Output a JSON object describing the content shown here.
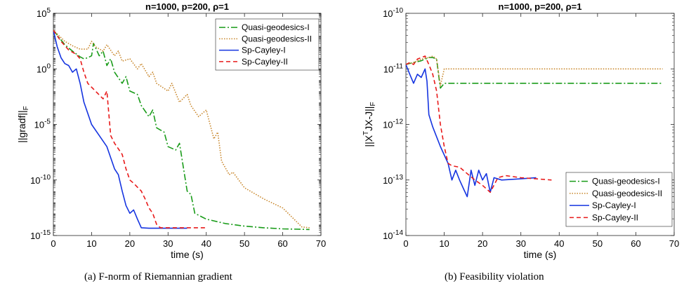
{
  "captions": {
    "a": "(a)  F-norm of Riemannian gradient",
    "b": "(b)  Feasibility violation"
  },
  "chart_data": [
    {
      "type": "line",
      "title": "n=1000, p=200,  ρ=1",
      "xlabel": "time (s)",
      "ylabel": "||gradf||",
      "ylabel_sub": "F",
      "yscale": "log",
      "xlim": [
        0,
        70
      ],
      "ylim": [
        1e-15,
        100000.0
      ],
      "xticks": [
        0,
        10,
        20,
        30,
        40,
        50,
        60,
        70
      ],
      "yticks": [
        {
          "value": 100000.0,
          "base": "10",
          "exp": "5"
        },
        {
          "value": 1,
          "base": "10",
          "exp": "0"
        },
        {
          "value": 1e-05,
          "base": "10",
          "exp": "-5"
        },
        {
          "value": 1e-10,
          "base": "10",
          "exp": "-10"
        },
        {
          "value": 1e-15,
          "base": "10",
          "exp": "-15"
        }
      ],
      "legend_position": "top-right",
      "series": [
        {
          "name": "Quasi-geodesics-I",
          "color": "#1a9c1a",
          "dash": "9,3,2,3",
          "x": [
            0,
            3,
            5,
            7,
            8,
            9,
            10,
            10.5,
            12,
            13,
            14,
            15,
            16,
            18,
            19,
            20,
            22,
            23,
            25,
            26,
            27,
            29,
            30,
            32,
            33,
            35,
            36,
            37,
            40,
            45,
            50,
            55,
            60,
            67
          ],
          "y": [
            3000.0,
            150,
            40,
            12,
            8,
            10,
            15,
            200,
            15,
            40,
            2,
            8,
            0.5,
            0.05,
            0.2,
            0.01,
            0.005,
            0.0005,
            5e-05,
            0.0002,
            5e-06,
            2e-06,
            1e-07,
            5e-08,
            2e-07,
            1e-11,
            5e-12,
            1e-13,
            3e-14,
            1.2e-14,
            7e-15,
            5e-15,
            4e-15,
            3.5e-15
          ]
        },
        {
          "name": "Quasi-geodesics-II",
          "color": "#c8862a",
          "dash": "1.5,2",
          "x": [
            0,
            3,
            5,
            7,
            9,
            10,
            11,
            13,
            14,
            16,
            17,
            18,
            20,
            22,
            23,
            25,
            26,
            27,
            30,
            31,
            33,
            35,
            36,
            38,
            40,
            42,
            43,
            44,
            46,
            47,
            50,
            55,
            60,
            65,
            67
          ],
          "y": [
            3000.0,
            300,
            120,
            60,
            60,
            300,
            100,
            40,
            150,
            15,
            40,
            5,
            8,
            1,
            3,
            0.2,
            0.5,
            0.05,
            0.01,
            0.05,
            0.001,
            0.005,
            0.0005,
            5e-05,
            0.0002,
            5e-07,
            2e-06,
            5e-09,
            3e-10,
            5e-10,
            2e-11,
            2e-12,
            3e-13,
            6e-15,
            5e-15
          ]
        },
        {
          "name": "Sp-Cayley-I",
          "color": "#1534e0",
          "dash": "",
          "x": [
            0,
            1,
            2,
            3,
            4,
            5,
            6,
            7,
            8,
            10,
            12,
            14,
            16,
            17,
            18,
            19,
            20,
            21,
            22,
            23,
            25,
            30,
            35
          ],
          "y": [
            3000.0,
            100,
            10,
            3,
            2,
            0.5,
            1,
            0.05,
            0.001,
            1e-05,
            1e-06,
            1e-07,
            1e-09,
            3e-10,
            1e-11,
            5e-13,
            1e-13,
            2e-13,
            3e-14,
            5e-15,
            4.5e-15,
            4.5e-15,
            4.5e-15
          ]
        },
        {
          "name": "Sp-Cayley-II",
          "color": "#e81a1a",
          "dash": "6,4",
          "x": [
            0,
            2,
            4,
            6,
            7,
            8,
            9,
            11,
            13,
            14,
            15,
            16,
            18,
            19,
            20,
            21,
            23,
            24,
            25,
            26,
            27,
            28,
            30,
            35,
            40
          ],
          "y": [
            3000.0,
            300,
            50,
            20,
            8,
            0.5,
            0.05,
            0.01,
            0.002,
            0.01,
            1e-06,
            2e-07,
            2e-08,
            1e-09,
            1e-10,
            5e-11,
            1e-11,
            2e-12,
            3e-13,
            1e-13,
            1e-14,
            5e-15,
            5e-15,
            5e-15,
            5e-15
          ]
        }
      ]
    },
    {
      "type": "line",
      "title": "n=1000, p=200,  ρ=1",
      "xlabel": "time (s)",
      "ylabel": "||X",
      "ylabel_sup": "T",
      "ylabel_rest": "JX-J||",
      "ylabel_sub": "F",
      "yscale": "log",
      "xlim": [
        0,
        70
      ],
      "ylim": [
        1e-14,
        1e-10
      ],
      "xticks": [
        0,
        10,
        20,
        30,
        40,
        50,
        60,
        70
      ],
      "yticks": [
        {
          "value": 1e-10,
          "base": "10",
          "exp": "-10"
        },
        {
          "value": 1e-11,
          "base": "10",
          "exp": "-11"
        },
        {
          "value": 1e-12,
          "base": "10",
          "exp": "-12"
        },
        {
          "value": 1e-13,
          "base": "10",
          "exp": "-13"
        },
        {
          "value": 1e-14,
          "base": "10",
          "exp": "-14"
        }
      ],
      "legend_position": "bottom-right",
      "series": [
        {
          "name": "Quasi-geodesics-I",
          "color": "#1a9c1a",
          "dash": "9,3,2,3",
          "x": [
            0,
            2,
            4,
            6,
            7,
            8,
            8.5,
            9,
            10,
            20,
            30,
            40,
            50,
            60,
            67
          ],
          "y": [
            1.2e-11,
            1.3e-11,
            1.4e-11,
            1.6e-11,
            1.6e-11,
            1.5e-11,
            8e-12,
            4.5e-12,
            5.5e-12,
            5.5e-12,
            5.5e-12,
            5.5e-12,
            5.5e-12,
            5.5e-12,
            5.5e-12
          ]
        },
        {
          "name": "Quasi-geodesics-II",
          "color": "#c8862a",
          "dash": "1.5,2",
          "x": [
            0,
            2,
            4,
            6,
            7,
            8,
            9,
            10,
            20,
            30,
            40,
            50,
            60,
            67
          ],
          "y": [
            1.2e-11,
            1.3e-11,
            1.5e-11,
            1.6e-11,
            1.7e-11,
            1.5e-11,
            5e-12,
            1e-11,
            1e-11,
            1e-11,
            1e-11,
            1e-11,
            1e-11,
            1e-11
          ]
        },
        {
          "name": "Sp-Cayley-I",
          "color": "#1534e0",
          "dash": "",
          "x": [
            0,
            1,
            2,
            3,
            4,
            5,
            5.5,
            6,
            7,
            9,
            11,
            12,
            13,
            14,
            15,
            16,
            17,
            18,
            19,
            20,
            21,
            22,
            23,
            25,
            30,
            34
          ],
          "y": [
            1.2e-11,
            8e-12,
            5.5e-12,
            8e-12,
            7e-12,
            1e-11,
            6e-12,
            1.5e-12,
            9e-13,
            4e-13,
            2e-13,
            1e-13,
            1.5e-13,
            1e-13,
            7e-14,
            5e-14,
            1.5e-13,
            8e-14,
            1.5e-13,
            1e-13,
            1.3e-13,
            6e-14,
            1.1e-13,
            1e-13,
            1.05e-13,
            1.1e-13
          ]
        },
        {
          "name": "Sp-Cayley-II",
          "color": "#e81a1a",
          "dash": "6,4",
          "x": [
            0,
            1,
            2,
            3,
            4,
            5,
            6,
            7,
            8,
            9,
            10,
            11,
            12,
            14,
            16,
            18,
            20,
            22,
            24,
            26,
            30,
            34,
            38
          ],
          "y": [
            1.2e-11,
            1.3e-11,
            1.2e-11,
            1.5e-11,
            1.6e-11,
            1.7e-11,
            1.2e-11,
            8e-12,
            4e-12,
            1e-12,
            4e-13,
            2e-13,
            1.8e-13,
            1.7e-13,
            1.3e-13,
            1e-13,
            8e-14,
            6e-14,
            1.1e-13,
            1.2e-13,
            1.1e-13,
            1.05e-13,
            1e-13
          ]
        }
      ]
    }
  ]
}
